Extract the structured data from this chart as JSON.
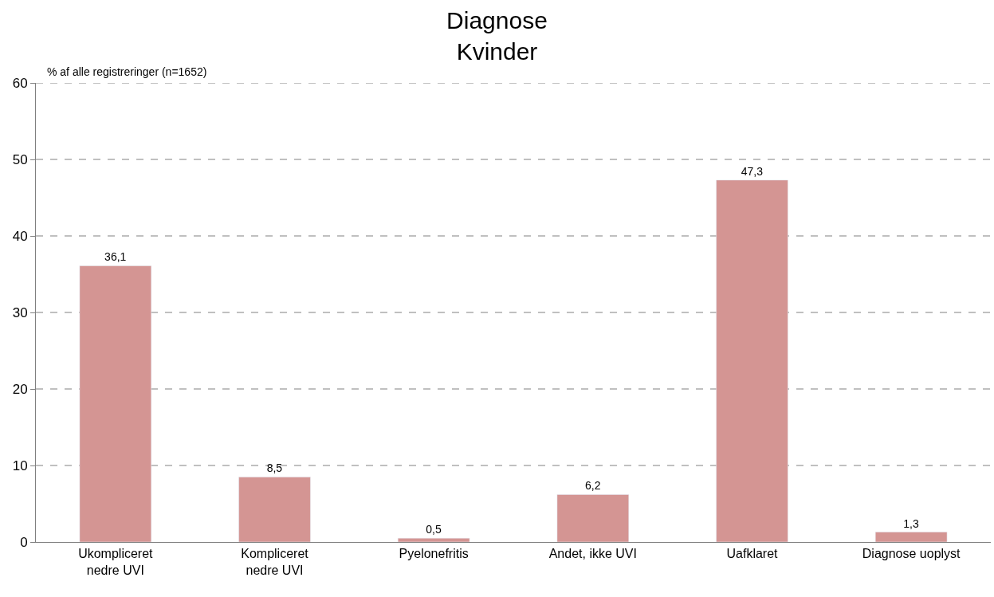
{
  "chart_data": {
    "type": "bar",
    "title": "Diagnose\nKvinder",
    "ylabel": "% af alle registreringer (n=1652)",
    "categories": [
      "Ukompliceret\nnedre UVI",
      "Kompliceret\nnedre UVI",
      "Pyelonefritis",
      "Andet, ikke UVI",
      "Uafklaret",
      "Diagnose uoplyst"
    ],
    "values": [
      36.1,
      8.5,
      0.5,
      6.2,
      47.3,
      1.3
    ],
    "value_labels": [
      "36,1",
      "8,5",
      "0,5",
      "6,2",
      "47,3",
      "1,3"
    ],
    "color": "#d49593",
    "ylim": [
      0,
      60
    ],
    "yticks": [
      0,
      10,
      20,
      30,
      40,
      50,
      60
    ],
    "grid": "y"
  }
}
